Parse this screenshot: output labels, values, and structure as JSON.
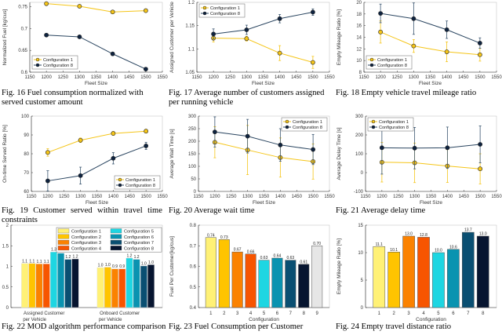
{
  "chart_data": [
    {
      "id": "fig16",
      "type": "line",
      "caption": "Fig. 16 Fuel consumption normalized with served customer amount",
      "xlabel": "Fleet Size",
      "ylabel": "Normalized Fuel [kg/cus]",
      "xlim": [
        1150,
        1550
      ],
      "ylim": [
        0.6,
        0.76
      ],
      "xticks": [
        1150,
        1200,
        1250,
        1300,
        1350,
        1400,
        1450,
        1500,
        1550
      ],
      "yticks": [
        0.6,
        0.65,
        0.7,
        0.75
      ],
      "ytick_labels": [
        "0.6",
        "0.65",
        "0.7",
        "0.75"
      ],
      "legend": "bottom-left",
      "x": [
        1200,
        1300,
        1400,
        1500
      ],
      "series": [
        {
          "name": "Configuration 1",
          "color": "#f5c518",
          "values": [
            0.757,
            0.751,
            0.738,
            0.741
          ]
        },
        {
          "name": "Configuration 8",
          "color": "#0e2340",
          "values": [
            0.685,
            0.681,
            0.642,
            0.607
          ]
        }
      ]
    },
    {
      "id": "fig17",
      "type": "line",
      "caption": "Fig. 17 Average number of customers assigned per running vehicle",
      "xlabel": "Fleet Size",
      "ylabel": "Assigned Customer per Vehicle",
      "xlim": [
        1150,
        1550
      ],
      "ylim": [
        1.05,
        1.2
      ],
      "xticks": [
        1150,
        1200,
        1250,
        1300,
        1350,
        1400,
        1450,
        1500,
        1550
      ],
      "yticks": [
        1.05,
        1.1,
        1.15,
        1.2
      ],
      "ytick_labels": [
        "1.05",
        "1.1",
        "1.15",
        "1.2"
      ],
      "legend": "top-left",
      "x": [
        1200,
        1300,
        1400,
        1500
      ],
      "series": [
        {
          "name": "Configuration 1",
          "color": "#f5c518",
          "values": [
            1.123,
            1.122,
            1.091,
            1.071
          ],
          "err": [
            0.008,
            0.005,
            0.016,
            0.013
          ]
        },
        {
          "name": "Configuration 8",
          "color": "#0e2340",
          "values": [
            1.132,
            1.141,
            1.165,
            1.179
          ],
          "err": [
            0.011,
            0.01,
            0.009,
            0.007
          ]
        }
      ]
    },
    {
      "id": "fig18",
      "type": "line",
      "caption": "Fig. 18 Empty vehicle travel mileage ratio",
      "xlabel": "Fleet Size",
      "ylabel": "Empty Mileage Ratio [%]",
      "xlim": [
        1150,
        1550
      ],
      "ylim": [
        8,
        20
      ],
      "xticks": [
        1150,
        1200,
        1250,
        1300,
        1350,
        1400,
        1450,
        1500,
        1550
      ],
      "yticks": [
        8,
        10,
        12,
        14,
        16,
        18,
        20
      ],
      "ytick_labels": [
        "8",
        "10",
        "12",
        "14",
        "16",
        "18",
        "20"
      ],
      "legend": "bottom-left",
      "x": [
        1200,
        1300,
        1400,
        1500
      ],
      "series": [
        {
          "name": "Configuration 1",
          "color": "#f5c518",
          "values": [
            14.9,
            12.5,
            11.5,
            11.0
          ],
          "err": [
            1.9,
            1.1,
            1.7,
            1.1
          ]
        },
        {
          "name": "Configuration 8",
          "color": "#0e2340",
          "values": [
            18.1,
            17.2,
            15.3,
            13.0
          ],
          "err": [
            1.6,
            2.7,
            1.5,
            0.9
          ]
        }
      ]
    },
    {
      "id": "fig19",
      "type": "line",
      "caption": "Fig. 19 Customer served within travel time constraints",
      "xlabel": "Fleet Size",
      "ylabel": "On-time Served Ratio [%]",
      "xlim": [
        1150,
        1550
      ],
      "ylim": [
        60,
        100
      ],
      "xticks": [
        1150,
        1200,
        1250,
        1300,
        1350,
        1400,
        1450,
        1500,
        1550
      ],
      "yticks": [
        60,
        70,
        80,
        90,
        100
      ],
      "ytick_labels": [
        "60",
        "70",
        "80",
        "90",
        "100"
      ],
      "legend": "bottom-right",
      "x": [
        1200,
        1300,
        1400,
        1500
      ],
      "series": [
        {
          "name": "Configuration 1",
          "color": "#f5c518",
          "values": [
            80.7,
            87.2,
            90.8,
            92.0
          ],
          "err": [
            2.0,
            1.2,
            1.0,
            1.0
          ]
        },
        {
          "name": "Configuration 8",
          "color": "#0e2340",
          "values": [
            65.6,
            68.4,
            77.6,
            84.2
          ],
          "err": [
            5.4,
            4.5,
            3.0,
            1.9
          ]
        }
      ]
    },
    {
      "id": "fig20",
      "type": "line",
      "caption": "Fig. 20 Average wait time",
      "xlabel": "Fleet Size",
      "ylabel": "Average Wait Time [s]",
      "xlim": [
        1150,
        1550
      ],
      "ylim": [
        0,
        300
      ],
      "xticks": [
        1150,
        1200,
        1250,
        1300,
        1350,
        1400,
        1450,
        1500,
        1550
      ],
      "yticks": [
        0,
        50,
        100,
        150,
        200,
        250,
        300
      ],
      "ytick_labels": [
        "0",
        "50",
        "100",
        "150",
        "200",
        "250",
        "300"
      ],
      "legend": "top-right",
      "x": [
        1200,
        1300,
        1400,
        1500
      ],
      "series": [
        {
          "name": "Configuration 1",
          "color": "#f5c518",
          "values": [
            196,
            165,
            135,
            119
          ],
          "err": [
            62,
            98,
            78,
            70
          ]
        },
        {
          "name": "Configuration 8",
          "color": "#0e2340",
          "values": [
            237,
            220,
            185,
            167
          ],
          "err": [
            60,
            67,
            65,
            60
          ]
        }
      ]
    },
    {
      "id": "fig21",
      "type": "line",
      "caption": "Fig. 21 Average delay time",
      "xlabel": "Fleet Size",
      "ylabel": "Average Delay Time [s]",
      "xlim": [
        1150,
        1550
      ],
      "ylim": [
        -100,
        300
      ],
      "xticks": [
        1150,
        1200,
        1250,
        1300,
        1350,
        1400,
        1450,
        1500,
        1550
      ],
      "yticks": [
        -100,
        0,
        100,
        200,
        300
      ],
      "ytick_labels": [
        "-100",
        "0",
        "100",
        "200",
        "300"
      ],
      "legend": "top-left",
      "x": [
        1200,
        1300,
        1400,
        1500
      ],
      "series": [
        {
          "name": "Configuration 1",
          "color": "#f5c518",
          "values": [
            55,
            52,
            35,
            20
          ],
          "err": [
            105,
            105,
            87,
            80
          ]
        },
        {
          "name": "Configuration 8",
          "color": "#0e2340",
          "values": [
            132,
            130,
            132,
            150
          ],
          "err": [
            140,
            110,
            110,
            98
          ]
        }
      ]
    },
    {
      "id": "fig22",
      "type": "bar",
      "caption": "Fig. 22 MOD algorithm performance comparison",
      "xlabel": "",
      "ylabel": "",
      "ylim": [
        0,
        2
      ],
      "yticks": [
        0,
        0.5,
        1,
        1.5,
        2
      ],
      "ytick_labels": [
        "0",
        "0.5",
        "1",
        "1.5",
        "2"
      ],
      "legend": "top-right",
      "categories": [
        "Assigned Customer per Vehicle",
        "Onboard Customer per Vehicle"
      ],
      "category_lines": [
        [
          "Assigned Customer",
          "per Vehicle"
        ],
        [
          "Onboard Customer",
          "per Vehicle"
        ]
      ],
      "series": [
        {
          "name": "Configuration 1",
          "color": "#fff176",
          "values": [
            1.07,
            0.97
          ],
          "labels": [
            "1.1",
            "1.0"
          ]
        },
        {
          "name": "Configuration 2",
          "color": "#ffc400",
          "values": [
            1.07,
            0.98
          ],
          "labels": [
            "1.1",
            "1.0"
          ]
        },
        {
          "name": "Configuration 3",
          "color": "#fb8200",
          "values": [
            1.06,
            0.94
          ],
          "labels": [
            "1.1",
            "0.9"
          ]
        },
        {
          "name": "Configuration 4",
          "color": "#f75500",
          "values": [
            1.06,
            0.94
          ],
          "labels": [
            "1.1",
            "0.9"
          ]
        },
        {
          "name": "Configuration 5",
          "color": "#1ed6e2",
          "values": [
            1.35,
            1.2
          ],
          "labels": [
            "1.3",
            "1.2"
          ]
        },
        {
          "name": "Configuration 6",
          "color": "#0a93b0",
          "values": [
            1.32,
            1.17
          ],
          "labels": [
            "1.3",
            "1.2"
          ]
        },
        {
          "name": "Configuration 7",
          "color": "#0a4f72",
          "values": [
            1.17,
            1.01
          ],
          "labels": [
            "1.2",
            "1.0"
          ]
        },
        {
          "name": "Configuration 8",
          "color": "#071530",
          "values": [
            1.18,
            1.04
          ],
          "labels": [
            "1.2",
            "1.0"
          ]
        }
      ]
    },
    {
      "id": "fig23",
      "type": "bar",
      "caption": "Fig. 23 Fuel Consumption per Customer",
      "xlabel": "Configuration",
      "ylabel": "Fuel Per Customer[kg/cus]",
      "ylim": [
        0.4,
        0.8
      ],
      "yticks": [
        0.4,
        0.5,
        0.6,
        0.7,
        0.8
      ],
      "ytick_labels": [
        "0.4",
        "0.5",
        "0.6",
        "0.7",
        "0.8"
      ],
      "categories": [
        "1",
        "2",
        "3",
        "4",
        "5",
        "6",
        "7",
        "8",
        "9"
      ],
      "values": [
        0.74,
        0.73,
        0.67,
        0.66,
        0.63,
        0.64,
        0.63,
        0.61,
        0.7
      ],
      "labels": [
        "0.74",
        "0.73",
        "0.67",
        "0.66",
        "0.63",
        "0.64",
        "0.63",
        "0.61",
        "0.70"
      ],
      "colors": [
        "#fff176",
        "#ffc400",
        "#fb8200",
        "#f75500",
        "#1ed6e2",
        "#0a93b0",
        "#0a4f72",
        "#071530",
        "#e6e6e6"
      ]
    },
    {
      "id": "fig24",
      "type": "bar",
      "caption": "Fig. 24 Empty travel distance ratio",
      "xlabel": "Configuration",
      "ylabel": "Empty Mileage Ratio [%]",
      "ylim": [
        0,
        15
      ],
      "yticks": [
        0,
        5,
        10,
        15
      ],
      "ytick_labels": [
        "0",
        "5",
        "10",
        "15"
      ],
      "categories": [
        "1",
        "2",
        "3",
        "4",
        "5",
        "6",
        "7",
        "8"
      ],
      "values": [
        11.1,
        10.1,
        13.0,
        12.8,
        10.0,
        10.6,
        13.7,
        13.0
      ],
      "labels": [
        "11.1",
        "10.1",
        "13.0",
        "12.8",
        "10.0",
        "10.6",
        "13.7",
        "13.0"
      ],
      "colors": [
        "#fff176",
        "#ffc400",
        "#fb8200",
        "#f75500",
        "#1ed6e2",
        "#0a93b0",
        "#0a4f72",
        "#071530"
      ]
    }
  ]
}
